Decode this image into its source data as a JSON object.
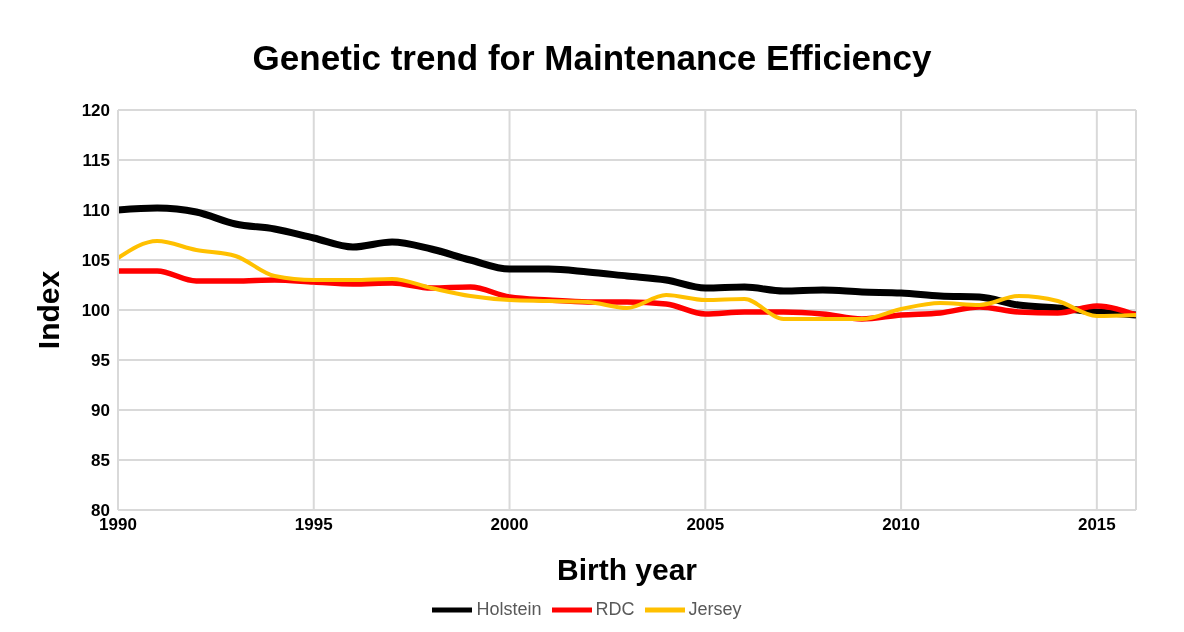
{
  "chart_data": {
    "type": "line",
    "title": "Genetic trend for Maintenance Efficiency",
    "xlabel": "Birth year",
    "ylabel": "Index",
    "x": [
      1990,
      1991,
      1992,
      1993,
      1994,
      1995,
      1996,
      1997,
      1998,
      1999,
      2000,
      2001,
      2002,
      2003,
      2004,
      2005,
      2006,
      2007,
      2008,
      2009,
      2010,
      2011,
      2012,
      2013,
      2014,
      2015,
      2016
    ],
    "series": [
      {
        "name": "Holstein",
        "color": "#000000",
        "values": [
          110,
          110.2,
          109.8,
          108.6,
          108.1,
          107.2,
          106.3,
          106.8,
          106.1,
          105,
          104.1,
          104.1,
          103.8,
          103.4,
          103,
          102.2,
          102.3,
          101.9,
          102,
          101.8,
          101.7,
          101.4,
          101.3,
          100.5,
          100.2,
          99.8,
          99.5
        ]
      },
      {
        "name": "RDC",
        "color": "#ff0000",
        "values": [
          103.9,
          103.9,
          102.9,
          102.9,
          103,
          102.8,
          102.6,
          102.7,
          102.2,
          102.3,
          101.3,
          101,
          100.8,
          100.8,
          100.6,
          99.6,
          99.8,
          99.8,
          99.6,
          99.1,
          99.5,
          99.7,
          100.3,
          99.8,
          99.7,
          100.4,
          99.5
        ]
      },
      {
        "name": "Jersey",
        "color": "#ffc000",
        "values": [
          105.2,
          106.9,
          106,
          105.4,
          103.4,
          103,
          103,
          103.1,
          102.2,
          101.4,
          101,
          100.9,
          100.8,
          100.2,
          101.5,
          101,
          101.1,
          99.1,
          99.1,
          99.1,
          100.1,
          100.7,
          100.5,
          101.4,
          100.9,
          99.4,
          99.5
        ]
      }
    ],
    "xlim": [
      1990,
      2016
    ],
    "xticks": [
      1990,
      1995,
      2000,
      2005,
      2010,
      2015
    ],
    "ylim": [
      80,
      120
    ],
    "yticks": [
      80,
      85,
      90,
      95,
      100,
      105,
      110,
      115,
      120
    ],
    "grid": true,
    "legend": "bottom",
    "marker": "none",
    "line_style": "solid"
  }
}
